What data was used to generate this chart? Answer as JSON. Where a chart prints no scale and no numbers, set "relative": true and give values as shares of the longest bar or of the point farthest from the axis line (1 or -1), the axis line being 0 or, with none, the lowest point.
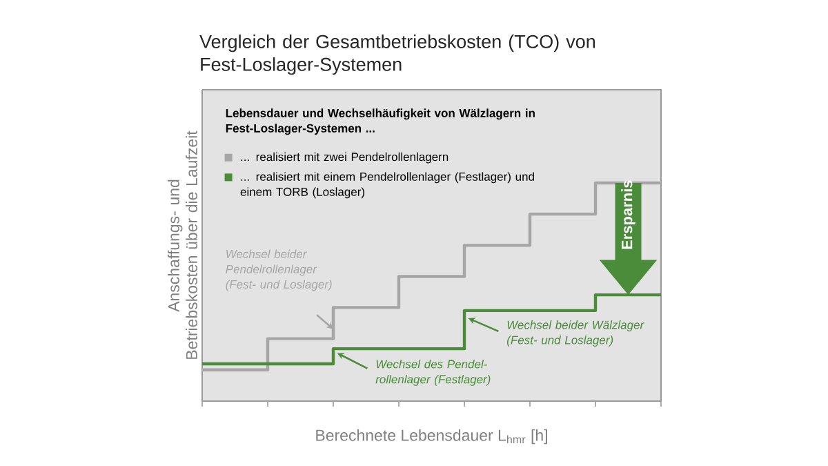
{
  "chart_data": {
    "type": "step",
    "relative": true,
    "title": "Vergleich der Gesamtbetriebskosten (TCO) von Fest-Loslager-Systemen",
    "xlabel": "Berechnete Lebensdauer L$_{hmr}$ [h]",
    "ylabel": "Anschaffungs- und Betriebskosten über die Laufzeit",
    "legend_title": "Lebensdauer und Wechselhäufigkeit von Wälzlagern in Fest-Loslager-Systemen ...",
    "legend": "top left",
    "categories": [
      null,
      null,
      null,
      null,
      null,
      null,
      null,
      null
    ],
    "series": [
      {
        "name": "... realisiert mit zwei Pendelrollenlagern",
        "color": "#a6a6a6",
        "values": [
          0.143,
          0.286,
          0.429,
          0.571,
          0.714,
          0.857,
          1,
          1
        ]
      },
      {
        "name": "... realisiert mit einem Pendelrollenlager (Festlager) und einem TORB (Loslager)",
        "color": "#4a8c3a",
        "values": [
          0.171,
          0.171,
          0.24,
          0.24,
          0.415,
          0.415,
          0.487,
          0.487
        ]
      }
    ],
    "annotations": [
      "Wechsel beider Pendelrollenlager (Fest- und Loslager)",
      "Wechsel des Pendel-rollenlager (Festlager)",
      "Wechsel beider Wälzlager (Fest- und Loslager)",
      "Ersparnis"
    ]
  }
}
